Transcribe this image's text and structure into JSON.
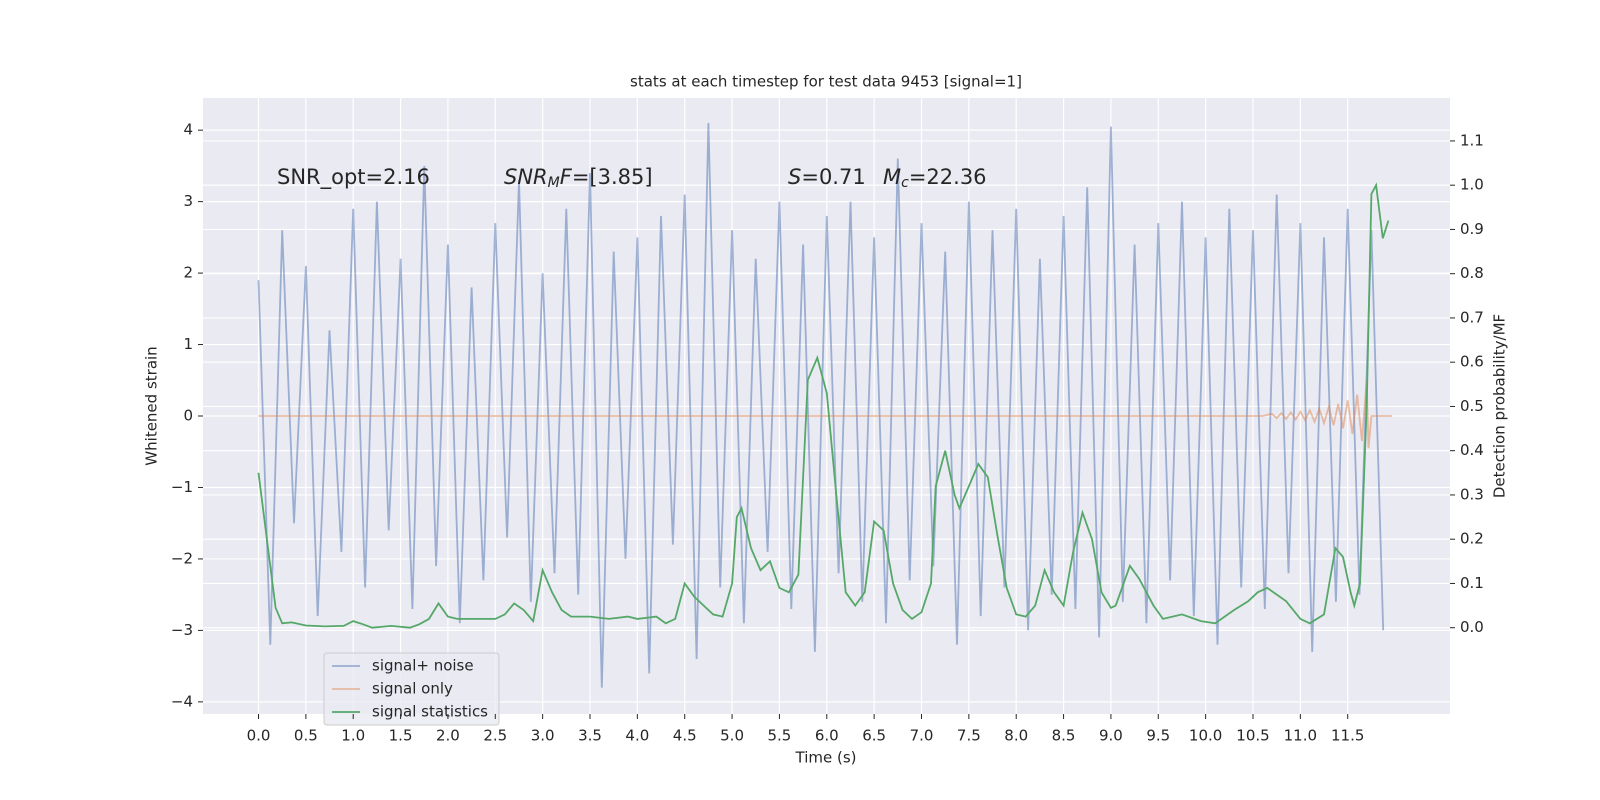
{
  "chart_data": {
    "type": "line",
    "title": "stats at each timestep for test data 9453 [signal=1]",
    "xlabel": "Time (s)",
    "ylabel": "Whitened strain",
    "y2label": "Detection probability/MF",
    "annotations": [
      [
        {
          "text": "SNR_opt=2.16"
        }
      ],
      [
        {
          "text": "SNR",
          "italic": true
        },
        {
          "text": "M",
          "italic": true,
          "sub": true
        },
        {
          "text": "F",
          "italic": true
        },
        {
          "text": "=[3.85]"
        }
      ],
      [
        {
          "text": "S",
          "italic": true
        },
        {
          "text": "=0.71"
        }
      ],
      [
        {
          "text": "M",
          "italic": true
        },
        {
          "text": "c",
          "italic": true,
          "sub": true
        },
        {
          "text": "=22.36"
        }
      ]
    ],
    "xlim": [
      -0.586,
      12.58
    ],
    "ylim": [
      -4.17,
      4.45
    ],
    "y2lim": [
      -0.195,
      1.197
    ],
    "xticks": [
      {
        "value": 0,
        "label": "0.0"
      },
      0.5,
      {
        "value": 1,
        "label": "1.0"
      },
      1.5,
      {
        "value": 2,
        "label": "2.0"
      },
      2.5,
      {
        "value": 3,
        "label": "3.0"
      },
      3.5,
      {
        "value": 4,
        "label": "4.0"
      },
      4.5,
      {
        "value": 5,
        "label": "5.0"
      },
      5.5,
      {
        "value": 6,
        "label": "6.0"
      },
      6.5,
      {
        "value": 7,
        "label": "7.0"
      },
      7.5,
      {
        "value": 8,
        "label": "8.0"
      },
      8.5,
      {
        "value": 9,
        "label": "9.0"
      },
      9.5,
      {
        "value": 10,
        "label": "10.0"
      },
      10.5,
      {
        "value": 11,
        "label": "11.0"
      },
      11.5
    ],
    "yticks": [
      {
        "value": -4,
        "label": "−4"
      },
      {
        "value": -3,
        "label": "−3"
      },
      {
        "value": -2,
        "label": "−2"
      },
      {
        "value": -1,
        "label": "−1"
      },
      0,
      1,
      2,
      3,
      4
    ],
    "y2ticks": [
      {
        "value": 0,
        "label": "0.0"
      },
      0.1,
      0.2,
      0.3,
      0.4,
      0.5,
      0.6,
      0.7,
      0.8,
      0.9,
      {
        "value": 1,
        "label": "1.0"
      },
      1.1
    ],
    "grid": true,
    "legend": "lower left",
    "series": [
      {
        "name": "signal+ noise",
        "color": "#4c72b0",
        "alpha": 0.5,
        "x": [
          0,
          0.125,
          0.25,
          0.375,
          0.5,
          0.625,
          0.75,
          0.875,
          1,
          1.125,
          1.25,
          1.375,
          1.5,
          1.625,
          1.75,
          1.875,
          2,
          2.125,
          2.25,
          2.375,
          2.5,
          2.625,
          2.75,
          2.875,
          3,
          3.125,
          3.25,
          3.375,
          3.5,
          3.625,
          3.75,
          3.875,
          4,
          4.125,
          4.25,
          4.375,
          4.5,
          4.625,
          4.75,
          4.875,
          5,
          5.125,
          5.25,
          5.375,
          5.5,
          5.625,
          5.75,
          5.875,
          6,
          6.125,
          6.25,
          6.375,
          6.5,
          6.625,
          6.75,
          6.875,
          7,
          7.125,
          7.25,
          7.375,
          7.5,
          7.625,
          7.75,
          7.875,
          8,
          8.125,
          8.25,
          8.375,
          8.5,
          8.625,
          8.75,
          8.875,
          9,
          9.125,
          9.25,
          9.375,
          9.5,
          9.625,
          9.75,
          9.875,
          10,
          10.125,
          10.25,
          10.375,
          10.5,
          10.625,
          10.75,
          10.875,
          11,
          11.125,
          11.25,
          11.375,
          11.5,
          11.625,
          11.75,
          11.875
        ],
        "values": [
          1.9,
          -3.2,
          2.6,
          -1.5,
          2.1,
          -2.8,
          1.2,
          -1.9,
          2.9,
          -2.4,
          3.0,
          -1.6,
          2.2,
          -2.7,
          3.5,
          -2.1,
          2.4,
          -2.9,
          1.8,
          -2.3,
          2.7,
          -1.7,
          3.3,
          -2.6,
          2.0,
          -2.2,
          2.9,
          -2.5,
          3.4,
          -3.8,
          2.3,
          -2.0,
          2.5,
          -3.6,
          2.8,
          -1.8,
          3.1,
          -3.4,
          4.1,
          -2.4,
          2.6,
          -2.9,
          2.2,
          -1.9,
          3.0,
          -2.7,
          2.4,
          -3.3,
          2.8,
          -2.2,
          3.0,
          -2.6,
          2.5,
          -2.9,
          3.6,
          -2.3,
          2.7,
          -2.1,
          2.3,
          -3.2,
          3.0,
          -2.8,
          2.6,
          -2.4,
          2.9,
          -3.0,
          2.2,
          -2.5,
          2.8,
          -2.7,
          3.2,
          -3.1,
          4.05,
          -2.6,
          2.4,
          -2.9,
          2.7,
          -2.3,
          3.0,
          -2.8,
          2.5,
          -3.2,
          2.9,
          -2.4,
          2.6,
          -2.7,
          3.1,
          -2.2,
          2.7,
          -3.3,
          2.5,
          -2.6,
          2.9,
          -2.5,
          2.6,
          -3.0
        ]
      },
      {
        "name": "signal only",
        "color": "#dd8452",
        "alpha": 0.5,
        "x": [
          0,
          10.6,
          10.7,
          10.75,
          10.8,
          10.85,
          10.9,
          10.95,
          11,
          11.05,
          11.1,
          11.15,
          11.2,
          11.25,
          11.3,
          11.35,
          11.4,
          11.45,
          11.5,
          11.55,
          11.6,
          11.65,
          11.7,
          11.72,
          11.75,
          11.97
        ],
        "values": [
          0,
          0,
          0.03,
          -0.03,
          0.04,
          -0.04,
          0.05,
          -0.05,
          0.06,
          -0.06,
          0.08,
          -0.08,
          0.1,
          -0.1,
          0.13,
          -0.13,
          0.17,
          -0.17,
          0.22,
          -0.25,
          0.3,
          -0.35,
          0.5,
          -0.45,
          0,
          0
        ]
      },
      {
        "name": "signal statistics",
        "color": "#55a868",
        "axis": "y2",
        "x": [
          0,
          0.1,
          0.18,
          0.25,
          0.35,
          0.5,
          0.7,
          0.9,
          1,
          1.1,
          1.2,
          1.4,
          1.6,
          1.7,
          1.8,
          1.9,
          2,
          2.1,
          2.3,
          2.5,
          2.6,
          2.7,
          2.8,
          2.9,
          3,
          3.1,
          3.2,
          3.3,
          3.5,
          3.7,
          3.9,
          4,
          4.2,
          4.3,
          4.4,
          4.5,
          4.6,
          4.7,
          4.8,
          4.9,
          5,
          5.05,
          5.1,
          5.2,
          5.3,
          5.4,
          5.5,
          5.6,
          5.7,
          5.8,
          5.9,
          6,
          6.1,
          6.2,
          6.3,
          6.4,
          6.5,
          6.6,
          6.7,
          6.8,
          6.9,
          7,
          7.1,
          7.15,
          7.25,
          7.35,
          7.4,
          7.5,
          7.6,
          7.7,
          7.8,
          7.9,
          8,
          8.1,
          8.2,
          8.3,
          8.4,
          8.5,
          8.6,
          8.7,
          8.8,
          8.9,
          9,
          9.05,
          9.2,
          9.3,
          9.45,
          9.55,
          9.75,
          9.95,
          10.1,
          10.3,
          10.45,
          10.55,
          10.65,
          10.85,
          11,
          11.1,
          11.25,
          11.37,
          11.45,
          11.53,
          11.57,
          11.63,
          11.7,
          11.75,
          11.8,
          11.87,
          11.93
        ],
        "values": [
          0.35,
          0.18,
          0.045,
          0.01,
          0.012,
          0.005,
          0.003,
          0.004,
          0.015,
          0.008,
          0,
          0.004,
          0,
          0.008,
          0.02,
          0.055,
          0.025,
          0.02,
          0.02,
          0.02,
          0.03,
          0.055,
          0.04,
          0.015,
          0.13,
          0.08,
          0.04,
          0.025,
          0.025,
          0.02,
          0.025,
          0.02,
          0.025,
          0.01,
          0.02,
          0.1,
          0.07,
          0.05,
          0.03,
          0.025,
          0.1,
          0.25,
          0.27,
          0.18,
          0.13,
          0.15,
          0.09,
          0.08,
          0.12,
          0.56,
          0.61,
          0.53,
          0.3,
          0.08,
          0.05,
          0.08,
          0.24,
          0.22,
          0.1,
          0.04,
          0.02,
          0.035,
          0.1,
          0.32,
          0.4,
          0.3,
          0.27,
          0.32,
          0.37,
          0.34,
          0.21,
          0.09,
          0.03,
          0.025,
          0.05,
          0.13,
          0.08,
          0.05,
          0.17,
          0.26,
          0.2,
          0.08,
          0.045,
          0.05,
          0.14,
          0.11,
          0.05,
          0.02,
          0.03,
          0.015,
          0.01,
          0.04,
          0.06,
          0.08,
          0.09,
          0.06,
          0.02,
          0.01,
          0.03,
          0.18,
          0.16,
          0.08,
          0.05,
          0.1,
          0.5,
          0.98,
          1.0,
          0.88,
          0.92
        ]
      }
    ]
  }
}
